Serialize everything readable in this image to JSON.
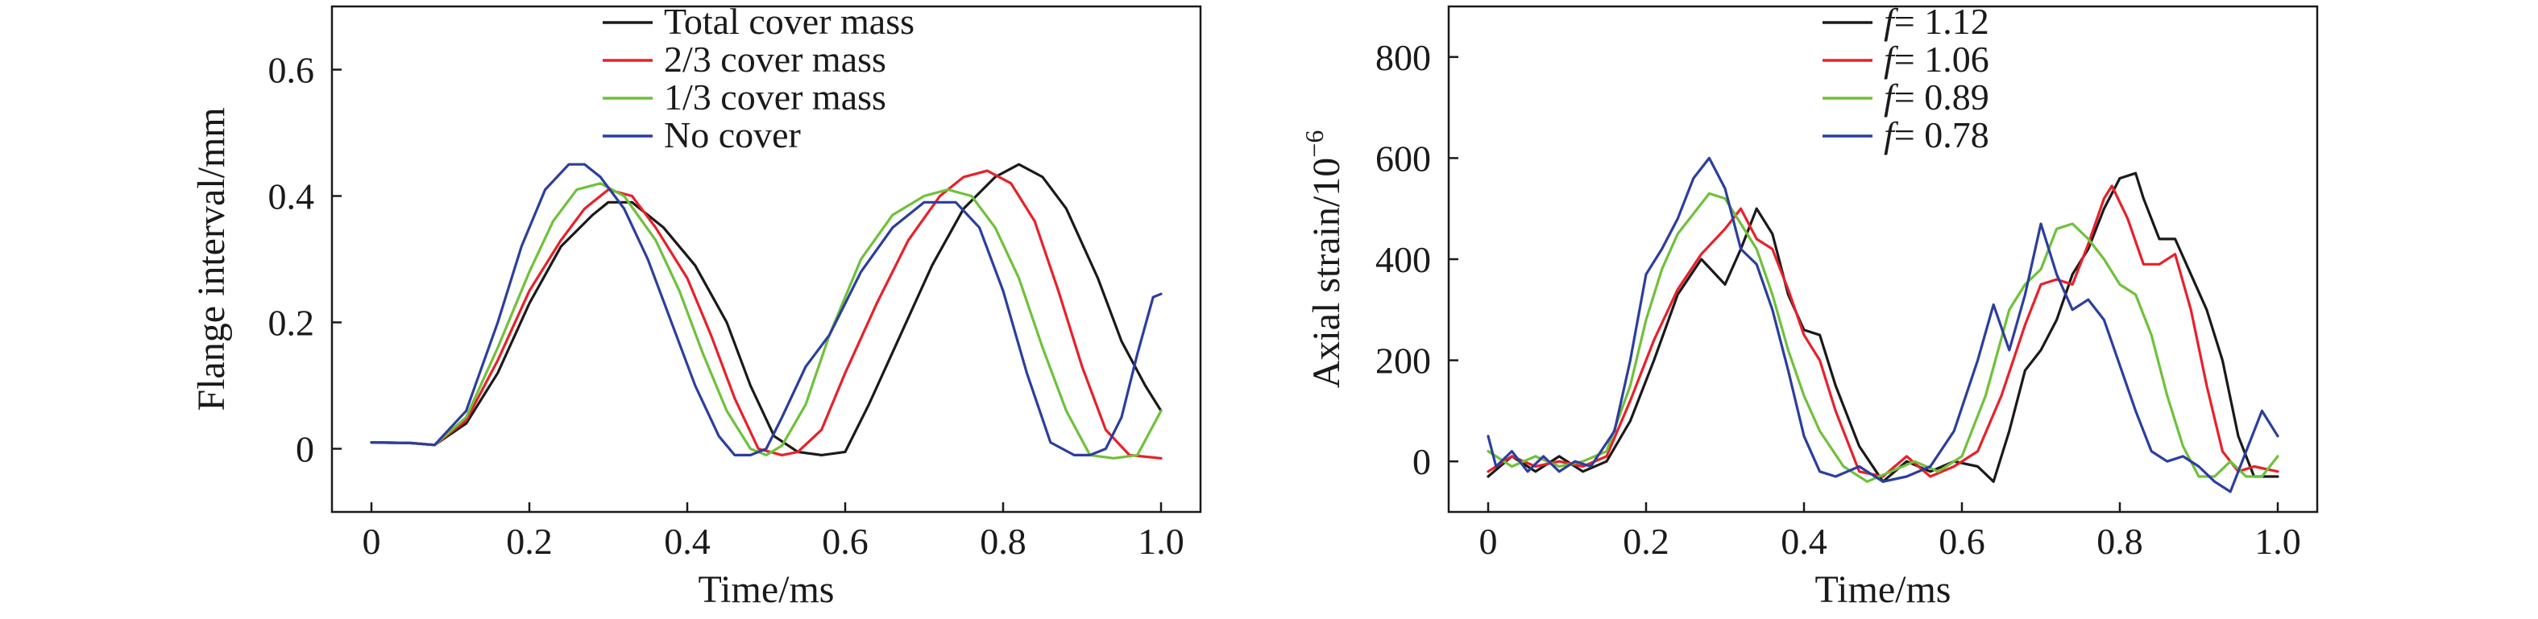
{
  "chart_data": [
    {
      "type": "line",
      "title": "",
      "xlabel": "Time/ms",
      "ylabel": "Flange interval/mm",
      "xlim": [
        -0.05,
        1.05
      ],
      "ylim": [
        -0.1,
        0.7
      ],
      "xticks": [
        0,
        0.2,
        0.4,
        0.6,
        0.8,
        1.0
      ],
      "xtick_labels": [
        "0",
        "0.2",
        "0.4",
        "0.6",
        "0.8",
        "1.0"
      ],
      "yticks": [
        0,
        0.2,
        0.4,
        0.6
      ],
      "ytick_labels": [
        "0",
        "0.2",
        "0.4",
        "0.6"
      ],
      "grid": false,
      "legend_position": "top-center",
      "series": [
        {
          "name": "Total cover mass",
          "color": "#1a1a1a",
          "x": [
            0,
            0.05,
            0.08,
            0.12,
            0.16,
            0.2,
            0.24,
            0.28,
            0.3,
            0.33,
            0.37,
            0.41,
            0.45,
            0.48,
            0.51,
            0.54,
            0.57,
            0.6,
            0.63,
            0.67,
            0.71,
            0.75,
            0.79,
            0.82,
            0.85,
            0.88,
            0.92,
            0.95,
            0.98,
            1.0
          ],
          "y": [
            0.01,
            0.009,
            0.006,
            0.04,
            0.12,
            0.23,
            0.32,
            0.37,
            0.39,
            0.39,
            0.35,
            0.29,
            0.2,
            0.1,
            0.02,
            -0.005,
            -0.01,
            -0.005,
            0.07,
            0.18,
            0.29,
            0.38,
            0.43,
            0.45,
            0.43,
            0.38,
            0.27,
            0.17,
            0.1,
            0.06
          ]
        },
        {
          "name": "2/3 cover mass",
          "color": "#e8202a",
          "x": [
            0,
            0.05,
            0.08,
            0.12,
            0.16,
            0.2,
            0.24,
            0.27,
            0.3,
            0.33,
            0.36,
            0.4,
            0.43,
            0.46,
            0.49,
            0.52,
            0.54,
            0.57,
            0.6,
            0.64,
            0.68,
            0.72,
            0.75,
            0.78,
            0.81,
            0.84,
            0.87,
            0.9,
            0.93,
            0.96,
            1.0
          ],
          "y": [
            0.01,
            0.009,
            0.006,
            0.045,
            0.14,
            0.25,
            0.33,
            0.38,
            0.41,
            0.4,
            0.35,
            0.27,
            0.18,
            0.08,
            0.0,
            -0.01,
            -0.005,
            0.03,
            0.12,
            0.23,
            0.33,
            0.4,
            0.43,
            0.44,
            0.42,
            0.36,
            0.25,
            0.13,
            0.03,
            -0.01,
            -0.015
          ]
        },
        {
          "name": "1/3 cover mass",
          "color": "#6fc13a",
          "x": [
            0,
            0.05,
            0.08,
            0.12,
            0.16,
            0.2,
            0.23,
            0.26,
            0.29,
            0.32,
            0.36,
            0.39,
            0.42,
            0.45,
            0.48,
            0.5,
            0.52,
            0.55,
            0.58,
            0.62,
            0.66,
            0.7,
            0.73,
            0.76,
            0.79,
            0.82,
            0.85,
            0.88,
            0.91,
            0.94,
            0.97,
            1.0
          ],
          "y": [
            0.01,
            0.009,
            0.006,
            0.05,
            0.16,
            0.28,
            0.36,
            0.41,
            0.42,
            0.4,
            0.33,
            0.25,
            0.15,
            0.06,
            0.0,
            -0.01,
            0.005,
            0.07,
            0.18,
            0.3,
            0.37,
            0.4,
            0.41,
            0.4,
            0.35,
            0.27,
            0.16,
            0.06,
            -0.01,
            -0.015,
            -0.01,
            0.06
          ]
        },
        {
          "name": "No cover",
          "color": "#2c3e9e",
          "x": [
            0,
            0.05,
            0.08,
            0.12,
            0.16,
            0.19,
            0.22,
            0.25,
            0.27,
            0.29,
            0.32,
            0.35,
            0.38,
            0.41,
            0.44,
            0.46,
            0.48,
            0.5,
            0.52,
            0.55,
            0.58,
            0.62,
            0.66,
            0.7,
            0.74,
            0.77,
            0.8,
            0.83,
            0.86,
            0.89,
            0.91,
            0.93,
            0.95,
            0.97,
            0.99,
            1.0
          ],
          "y": [
            0.01,
            0.009,
            0.006,
            0.06,
            0.2,
            0.32,
            0.41,
            0.45,
            0.45,
            0.43,
            0.38,
            0.3,
            0.2,
            0.1,
            0.02,
            -0.01,
            -0.01,
            0.0,
            0.05,
            0.13,
            0.18,
            0.28,
            0.35,
            0.39,
            0.39,
            0.35,
            0.25,
            0.12,
            0.01,
            -0.01,
            -0.01,
            0.0,
            0.05,
            0.15,
            0.24,
            0.245
          ]
        }
      ]
    },
    {
      "type": "line",
      "title": "",
      "xlabel": "Time/ms",
      "ylabel": "Axial strain/10",
      "ylabel_superscript": "−6",
      "xlim": [
        -0.05,
        1.05
      ],
      "ylim": [
        -100,
        900
      ],
      "xticks": [
        0,
        0.2,
        0.4,
        0.6,
        0.8,
        1.0
      ],
      "xtick_labels": [
        "0",
        "0.2",
        "0.4",
        "0.6",
        "0.8",
        "1.0"
      ],
      "yticks": [
        0,
        200,
        400,
        600,
        800
      ],
      "ytick_labels": [
        "0",
        "200",
        "400",
        "600",
        "800"
      ],
      "grid": false,
      "legend_position": "top-center",
      "legend_symbol": "f",
      "series": [
        {
          "name": "= 1.12",
          "color": "#1a1a1a",
          "x": [
            0,
            0.03,
            0.06,
            0.09,
            0.12,
            0.15,
            0.18,
            0.21,
            0.24,
            0.27,
            0.3,
            0.32,
            0.34,
            0.36,
            0.38,
            0.4,
            0.42,
            0.44,
            0.47,
            0.5,
            0.53,
            0.56,
            0.59,
            0.62,
            0.64,
            0.66,
            0.68,
            0.7,
            0.72,
            0.74,
            0.76,
            0.78,
            0.8,
            0.82,
            0.83,
            0.85,
            0.87,
            0.89,
            0.91,
            0.93,
            0.95,
            0.97,
            1.0
          ],
          "y": [
            -30,
            10,
            -20,
            10,
            -20,
            0,
            80,
            200,
            330,
            400,
            350,
            420,
            500,
            450,
            330,
            260,
            250,
            150,
            30,
            -40,
            0,
            -20,
            0,
            -10,
            -40,
            60,
            180,
            220,
            280,
            370,
            420,
            500,
            560,
            570,
            520,
            440,
            440,
            370,
            300,
            200,
            50,
            -30,
            -30
          ]
        },
        {
          "name": "= 1.06",
          "color": "#e8202a",
          "x": [
            0,
            0.03,
            0.06,
            0.09,
            0.12,
            0.15,
            0.18,
            0.21,
            0.24,
            0.27,
            0.3,
            0.32,
            0.34,
            0.36,
            0.38,
            0.4,
            0.42,
            0.44,
            0.47,
            0.5,
            0.53,
            0.56,
            0.59,
            0.62,
            0.65,
            0.68,
            0.7,
            0.72,
            0.74,
            0.76,
            0.78,
            0.79,
            0.81,
            0.83,
            0.85,
            0.87,
            0.89,
            0.91,
            0.93,
            0.95,
            0.97,
            1.0
          ],
          "y": [
            -20,
            10,
            -10,
            0,
            -10,
            10,
            120,
            240,
            340,
            410,
            460,
            500,
            440,
            420,
            340,
            250,
            200,
            100,
            -20,
            -30,
            10,
            -30,
            -10,
            20,
            130,
            270,
            350,
            360,
            350,
            430,
            520,
            545,
            480,
            390,
            390,
            410,
            300,
            150,
            20,
            -20,
            -10,
            -20
          ]
        },
        {
          "name": "= 0.89",
          "color": "#6fc13a",
          "x": [
            0,
            0.03,
            0.06,
            0.09,
            0.12,
            0.15,
            0.18,
            0.2,
            0.22,
            0.24,
            0.26,
            0.28,
            0.3,
            0.32,
            0.34,
            0.36,
            0.38,
            0.4,
            0.42,
            0.45,
            0.48,
            0.51,
            0.54,
            0.57,
            0.6,
            0.63,
            0.66,
            0.68,
            0.7,
            0.72,
            0.74,
            0.76,
            0.78,
            0.8,
            0.82,
            0.84,
            0.86,
            0.88,
            0.9,
            0.92,
            0.94,
            0.96,
            0.98,
            1.0
          ],
          "y": [
            20,
            -10,
            10,
            -10,
            0,
            20,
            150,
            280,
            380,
            450,
            490,
            530,
            520,
            470,
            420,
            330,
            220,
            130,
            60,
            -10,
            -40,
            -20,
            0,
            -20,
            10,
            130,
            300,
            350,
            380,
            460,
            470,
            440,
            400,
            350,
            330,
            250,
            130,
            30,
            -30,
            -30,
            0,
            -30,
            -30,
            10
          ]
        },
        {
          "name": "= 0.78",
          "color": "#2c3e9e",
          "x": [
            0,
            0.01,
            0.03,
            0.05,
            0.07,
            0.09,
            0.11,
            0.13,
            0.16,
            0.18,
            0.2,
            0.22,
            0.24,
            0.26,
            0.28,
            0.3,
            0.32,
            0.34,
            0.36,
            0.38,
            0.4,
            0.42,
            0.44,
            0.47,
            0.5,
            0.53,
            0.56,
            0.59,
            0.62,
            0.64,
            0.66,
            0.68,
            0.7,
            0.72,
            0.74,
            0.76,
            0.78,
            0.8,
            0.82,
            0.84,
            0.86,
            0.88,
            0.9,
            0.92,
            0.94,
            0.96,
            0.98,
            1.0
          ],
          "y": [
            50,
            -10,
            20,
            -20,
            10,
            -20,
            0,
            -10,
            60,
            200,
            370,
            420,
            480,
            560,
            600,
            540,
            420,
            390,
            300,
            180,
            50,
            -20,
            -30,
            -10,
            -40,
            -30,
            -10,
            60,
            200,
            310,
            220,
            330,
            470,
            370,
            300,
            320,
            280,
            190,
            100,
            20,
            0,
            10,
            -10,
            -40,
            -60,
            20,
            100,
            50
          ]
        }
      ]
    }
  ]
}
